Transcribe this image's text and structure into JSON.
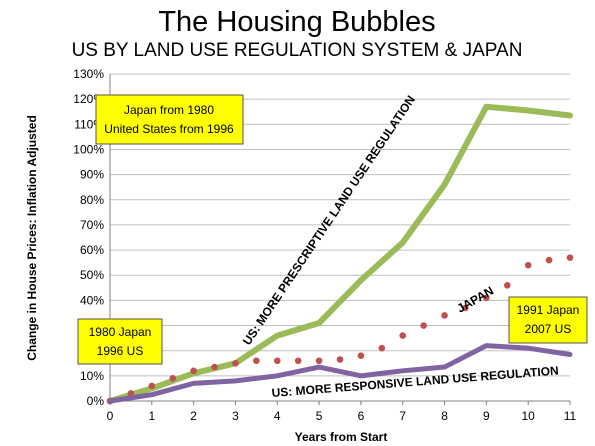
{
  "chart_data": {
    "type": "line",
    "title": "The Housing Bubbles",
    "subtitle": "US BY LAND USE REGULATION SYSTEM & JAPAN",
    "xlabel": "Years from Start",
    "ylabel": "Change in House Prices: Inflation Adjusted",
    "x": [
      0,
      1,
      2,
      3,
      4,
      5,
      6,
      7,
      8,
      9,
      10,
      11
    ],
    "xlim": [
      0,
      11
    ],
    "ylim": [
      0,
      130
    ],
    "y_ticks": [
      "0%",
      "10%",
      "20%",
      "30%",
      "40%",
      "50%",
      "60%",
      "70%",
      "80%",
      "90%",
      "100%",
      "110%",
      "120%",
      "130%"
    ],
    "x_ticks": [
      "0",
      "1",
      "2",
      "3",
      "4",
      "5",
      "6",
      "7",
      "8",
      "9",
      "10",
      "11"
    ],
    "grid": "horizontal",
    "series": [
      {
        "name": "US: MORE PRESCRIPTIVE LAND USE REGULATION",
        "style": "solid",
        "color": "#9BBB59",
        "x": [
          0,
          1,
          2,
          3,
          4,
          5,
          6,
          7,
          8,
          9,
          10,
          11
        ],
        "values": [
          0,
          5,
          11,
          15,
          26,
          31,
          48,
          63,
          86,
          117,
          115.5,
          113.5
        ]
      },
      {
        "name": "JAPAN",
        "style": "dotted",
        "color": "#C0504D",
        "x": [
          0,
          0.5,
          1,
          1.5,
          2,
          2.5,
          3,
          3.5,
          4,
          4.5,
          5,
          5.5,
          6,
          6.5,
          7,
          7.5,
          8,
          8.5,
          9,
          9.5,
          10,
          10.5,
          11
        ],
        "values": [
          0,
          3,
          6,
          9,
          12,
          13.5,
          15,
          16,
          16,
          16,
          16,
          16.5,
          18,
          21,
          26,
          30,
          34,
          37,
          41,
          46,
          54,
          56,
          57
        ]
      },
      {
        "name": "US: MORE RESPONSIVE LAND USE REGULATION",
        "style": "solid",
        "color": "#8064A2",
        "x": [
          0,
          1,
          2,
          3,
          4,
          5,
          6,
          7,
          8,
          9,
          10,
          11
        ],
        "values": [
          0,
          2.5,
          7,
          8,
          10,
          13.5,
          10,
          12,
          13.5,
          22,
          21,
          18.5
        ]
      }
    ],
    "annotations": {
      "box_top": [
        "Japan from 1980",
        "United States from 1996"
      ],
      "box_left": [
        "1980 Japan",
        "1996 US"
      ],
      "box_right": [
        "1991 Japan",
        "2007 US"
      ]
    }
  },
  "colors": {
    "box_fill": "#FFFF00",
    "grid": "#C0C0C0"
  }
}
